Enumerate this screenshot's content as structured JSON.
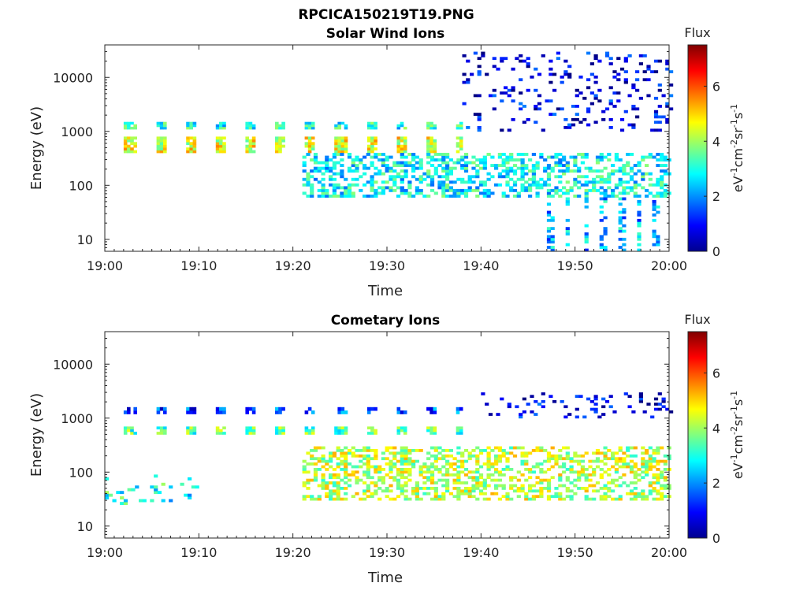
{
  "figure": {
    "title": "RPCICA150219T19.PNG"
  },
  "chart_data": [
    {
      "type": "heatmap",
      "title": "Solar Wind Ions",
      "xlabel": "Time",
      "ylabel": "Energy (eV)",
      "x_ticks": [
        "19:00",
        "19:10",
        "19:20",
        "19:30",
        "19:40",
        "19:50",
        "20:00"
      ],
      "y_ticks": [
        "10",
        "100",
        "1000",
        "10000"
      ],
      "y_scale": "log",
      "xlim": [
        "19:00",
        "20:00"
      ],
      "ylim": [
        6,
        40000
      ],
      "colorbar": {
        "label": "Flux",
        "unit": "eV-1cm-2sr-1s-1",
        "range": [
          0,
          7.5
        ],
        "ticks": [
          "0",
          "2",
          "4",
          "6"
        ]
      },
      "features": [
        {
          "time_min": [
            2,
            38
          ],
          "energy_ev": [
            400,
            800
          ],
          "flux": 4.5,
          "pattern": "periodic bursts every ~3 min"
        },
        {
          "time_min": [
            2,
            38
          ],
          "energy_ev": [
            1100,
            1500
          ],
          "flux": 3.0,
          "pattern": "periodic bursts every ~3 min"
        },
        {
          "time_min": [
            21,
            60
          ],
          "energy_ev": [
            60,
            400
          ],
          "flux": 2.8,
          "pattern": "broad patchy band"
        },
        {
          "time_min": [
            38,
            60
          ],
          "energy_ev": [
            1000,
            30000
          ],
          "flux": 0.8,
          "pattern": "sparse low-flux streaks"
        },
        {
          "time_min": [
            47,
            60
          ],
          "energy_ev": [
            6,
            60
          ],
          "flux": 2.2,
          "pattern": "vertical columns"
        }
      ]
    },
    {
      "type": "heatmap",
      "title": "Cometary Ions",
      "xlabel": "Time",
      "ylabel": "Energy (eV)",
      "x_ticks": [
        "19:00",
        "19:10",
        "19:20",
        "19:30",
        "19:40",
        "19:50",
        "20:00"
      ],
      "y_ticks": [
        "10",
        "100",
        "1000",
        "10000"
      ],
      "y_scale": "log",
      "xlim": [
        "19:00",
        "20:00"
      ],
      "ylim": [
        6,
        40000
      ],
      "colorbar": {
        "label": "Flux",
        "unit": "eV-1cm-2sr-1s-1",
        "range": [
          0,
          7.5
        ],
        "ticks": [
          "0",
          "2",
          "4",
          "6"
        ]
      },
      "features": [
        {
          "time_min": [
            0,
            10
          ],
          "energy_ev": [
            25,
            90
          ],
          "flux": 3.0,
          "pattern": "scattered patches"
        },
        {
          "time_min": [
            2,
            38
          ],
          "energy_ev": [
            500,
            700
          ],
          "flux": 3.5,
          "pattern": "periodic bursts every ~3 min"
        },
        {
          "time_min": [
            2,
            38
          ],
          "energy_ev": [
            1200,
            1600
          ],
          "flux": 1.5,
          "pattern": "periodic bursts every ~3 min"
        },
        {
          "time_min": [
            21,
            60
          ],
          "energy_ev": [
            30,
            300
          ],
          "flux": 4.2,
          "pattern": "broad intense band"
        },
        {
          "time_min": [
            40,
            60
          ],
          "energy_ev": [
            1000,
            3000
          ],
          "flux": 0.8,
          "pattern": "sparse low-flux streaks"
        }
      ]
    }
  ]
}
